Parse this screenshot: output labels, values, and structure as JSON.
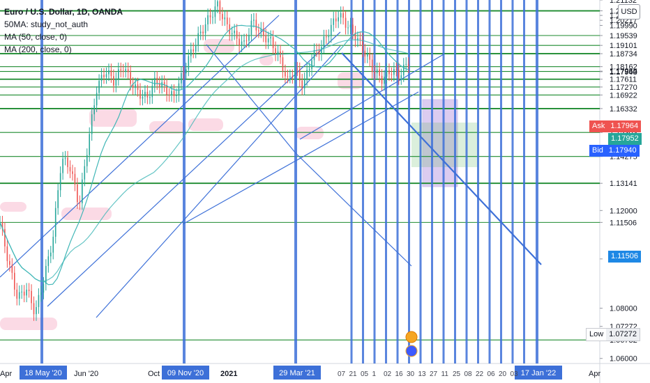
{
  "legend": {
    "title": "Euro / U.S. Dollar, 1D, OANDA",
    "study1": "50MA: study_not_auth",
    "study2": "MA (50, close, 0)",
    "study3": "MA (200, close, 0)"
  },
  "currency": "USD",
  "colors": {
    "green_line": "#1b8a2e",
    "blue_line": "#3d70d8",
    "ma_line": "#3fb6b6",
    "ask": "#ef5350",
    "bid": "#2962ff",
    "mid": "#26a69a",
    "price_blue": "#1e88e5",
    "candle_up": "#26a69a",
    "candle_down": "#ef5350",
    "purple_box": "#9c6fd6",
    "green_box": "#4caf50"
  },
  "chart_data": {
    "type": "candlestick",
    "title": "Euro / U.S. Dollar, 1D, OANDA",
    "y_scale": "log",
    "ylim": [
      1.058,
      1.2113
    ],
    "y_ticks": [
      "1.21132",
      "1.20643",
      "1.20437",
      "1.20217",
      "1.19990",
      "1.19539",
      "1.19101",
      "1.18734",
      "1.18162",
      "1.17964",
      "1.17952",
      "1.17940",
      "1.17611",
      "1.17270",
      "1.16922",
      "1.16332",
      "1.15303",
      "1.14275",
      "1.13141",
      "1.12000",
      "1.11506",
      "1.10000",
      "1.08000",
      "1.07272",
      "1.06732",
      "1.06000"
    ],
    "x_ticks": [
      "Apr",
      "Jun '20",
      "Oct",
      "2021",
      "Apr",
      "Apr"
    ],
    "x_marks_highlighted": [
      "18 May '20",
      "09 Nov '20",
      "29 Mar '21",
      "17 Jan '22"
    ],
    "x_marks_partial": [
      "07",
      "21",
      "05",
      "1",
      "02",
      "16",
      "30",
      "13",
      "27",
      "11",
      "25",
      "08",
      "22",
      "06",
      "20",
      "03"
    ],
    "horizontal_levels": [
      1.20643,
      1.19539,
      1.19101,
      1.18734,
      1.18162,
      1.17952,
      1.17611,
      1.1727,
      1.16922,
      1.16332,
      1.15303,
      1.14275,
      1.13141,
      1.11506,
      1.06732
    ],
    "price_labels": {
      "ask": {
        "label": "Ask",
        "value": "1.17964"
      },
      "mid": {
        "value": "1.17952"
      },
      "bid": {
        "label": "Bid",
        "value": "1.17940"
      },
      "low": {
        "label": "Low",
        "value": "1.07272"
      },
      "blue_mark": {
        "value": "1.11506"
      }
    },
    "series_anchors": [
      [
        0,
        1.115
      ],
      [
        8,
        1.098
      ],
      [
        16,
        1.084
      ],
      [
        24,
        1.088
      ],
      [
        32,
        1.078
      ],
      [
        40,
        1.092
      ],
      [
        48,
        1.108
      ],
      [
        56,
        1.142
      ],
      [
        64,
        1.138
      ],
      [
        72,
        1.122
      ],
      [
        80,
        1.148
      ],
      [
        88,
        1.172
      ],
      [
        96,
        1.18
      ],
      [
        104,
        1.175
      ],
      [
        112,
        1.182
      ],
      [
        118,
        1.176
      ],
      [
        126,
        1.17
      ],
      [
        134,
        1.168
      ],
      [
        142,
        1.176
      ],
      [
        150,
        1.172
      ],
      [
        158,
        1.168
      ],
      [
        166,
        1.178
      ],
      [
        174,
        1.188
      ],
      [
        182,
        1.196
      ],
      [
        190,
        1.203
      ],
      [
        198,
        1.209
      ],
      [
        206,
        1.2
      ],
      [
        214,
        1.195
      ],
      [
        222,
        1.191
      ],
      [
        230,
        1.202
      ],
      [
        238,
        1.196
      ],
      [
        246,
        1.193
      ],
      [
        254,
        1.186
      ],
      [
        262,
        1.175
      ],
      [
        268,
        1.181
      ],
      [
        276,
        1.173
      ],
      [
        284,
        1.186
      ],
      [
        292,
        1.19
      ],
      [
        300,
        1.198
      ],
      [
        308,
        1.205
      ],
      [
        316,
        1.2
      ],
      [
        324,
        1.195
      ],
      [
        332,
        1.188
      ],
      [
        340,
        1.18
      ],
      [
        348,
        1.176
      ],
      [
        356,
        1.18
      ],
      [
        364,
        1.178
      ],
      [
        372,
        1.184
      ]
    ],
    "series_x_range": [
      0,
      372
    ]
  }
}
